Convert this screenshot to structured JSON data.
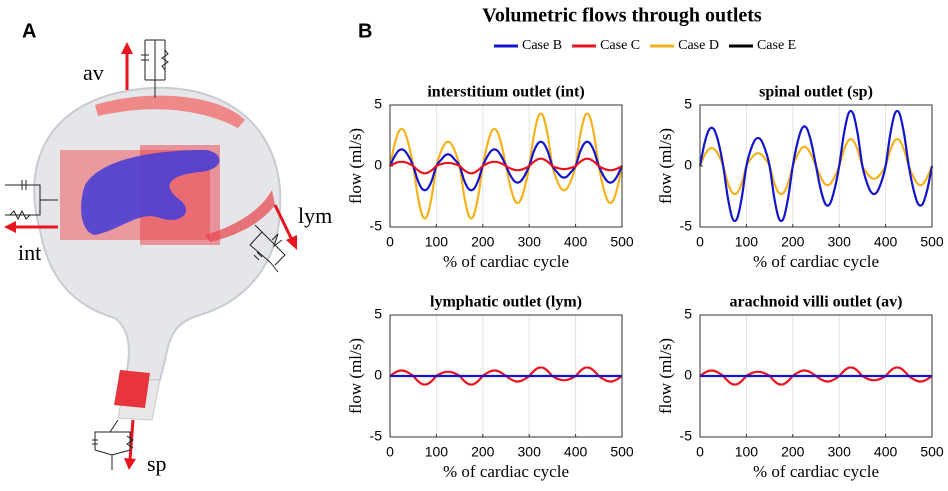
{
  "panel_a": {
    "label": "A",
    "outlets": [
      "av",
      "int",
      "lym",
      "sp"
    ]
  },
  "panel_b": {
    "label": "B",
    "title": "Volumetric flows through outlets",
    "legend": [
      {
        "name": "Case B",
        "color": "#1414cc"
      },
      {
        "name": "Case C",
        "color": "#e8141e"
      },
      {
        "name": "Case D",
        "color": "#f5b21b"
      },
      {
        "name": "Case E",
        "color": "#000000"
      }
    ]
  },
  "chart_data": [
    {
      "type": "line",
      "title": "interstitium outlet (int)",
      "xlabel": "% of cardiac cycle",
      "ylabel": "flow (ml/s)",
      "x": [
        0,
        10,
        20,
        30,
        40,
        50,
        60,
        70,
        80,
        90,
        100,
        110,
        120,
        130,
        140,
        150,
        160,
        170,
        180,
        190,
        200,
        210,
        220,
        230,
        240,
        250,
        260,
        270,
        280,
        290,
        300,
        310,
        320,
        330,
        340,
        350,
        360,
        370,
        380,
        390,
        400,
        410,
        420,
        430,
        440,
        450,
        460,
        470,
        480,
        490,
        500
      ],
      "xlim": [
        0,
        500
      ],
      "xticks": [
        0,
        100,
        200,
        300,
        400,
        500
      ],
      "ylim": [
        -5,
        5
      ],
      "yticks": [
        -5,
        0,
        5
      ],
      "grid": "x",
      "series": [
        {
          "name": "Case D",
          "color": "#f5b21b",
          "values": [
            0,
            1.8,
            2.9,
            2.9,
            1.8,
            0,
            -2.5,
            -4.1,
            -4.1,
            -2.5,
            0,
            1.2,
            1.9,
            1.9,
            1.2,
            0,
            -2.5,
            -4.1,
            -4.1,
            -2.5,
            0,
            1.8,
            2.9,
            2.9,
            1.8,
            0,
            -1.8,
            -2.9,
            -2.9,
            -1.8,
            0,
            2.5,
            4.1,
            4.1,
            2.5,
            0,
            -1.2,
            -1.9,
            -1.9,
            -1.2,
            0,
            2.5,
            4.1,
            4.1,
            2.5,
            0,
            -1.8,
            -2.9,
            -2.9,
            -1.8,
            0
          ]
        },
        {
          "name": "Case B",
          "color": "#1414cc",
          "values": [
            0,
            0.8,
            1.3,
            1.3,
            0.8,
            0,
            -1.2,
            -1.9,
            -1.9,
            -1.2,
            0,
            0.5,
            0.9,
            0.9,
            0.5,
            0,
            -1.2,
            -1.9,
            -1.9,
            -1.2,
            0,
            0.8,
            1.3,
            1.3,
            0.8,
            0,
            -0.8,
            -1.3,
            -1.3,
            -0.8,
            0,
            1.2,
            1.9,
            1.9,
            1.2,
            0,
            -0.5,
            -0.9,
            -0.9,
            -0.5,
            0,
            1.2,
            1.9,
            1.9,
            1.2,
            0,
            -0.8,
            -1.3,
            -1.3,
            -0.8,
            0
          ]
        },
        {
          "name": "Case C",
          "color": "#e8141e",
          "values": [
            0,
            0.21,
            0.33,
            0.33,
            0.21,
            0,
            -0.35,
            -0.57,
            -0.57,
            -0.35,
            0,
            0.15,
            0.24,
            0.24,
            0.15,
            0,
            -0.35,
            -0.57,
            -0.57,
            -0.35,
            0,
            0.21,
            0.33,
            0.33,
            0.21,
            0,
            -0.21,
            -0.33,
            -0.33,
            -0.21,
            0,
            0.35,
            0.57,
            0.57,
            0.35,
            0,
            -0.15,
            -0.24,
            -0.24,
            -0.15,
            0,
            0.35,
            0.57,
            0.57,
            0.35,
            0,
            -0.21,
            -0.33,
            -0.33,
            -0.21,
            0
          ]
        }
      ]
    },
    {
      "type": "line",
      "title": "spinal outlet (sp)",
      "xlabel": "% of cardiac cycle",
      "ylabel": "flow (ml/s)",
      "x": [
        0,
        10,
        20,
        30,
        40,
        50,
        60,
        70,
        80,
        90,
        100,
        110,
        120,
        130,
        140,
        150,
        160,
        170,
        180,
        190,
        200,
        210,
        220,
        230,
        240,
        250,
        260,
        270,
        280,
        290,
        300,
        310,
        320,
        330,
        340,
        350,
        360,
        370,
        380,
        390,
        400,
        410,
        420,
        430,
        440,
        450,
        460,
        470,
        480,
        490,
        500
      ],
      "xlim": [
        0,
        500
      ],
      "xticks": [
        0,
        100,
        200,
        300,
        400,
        500
      ],
      "ylim": [
        -5,
        5
      ],
      "yticks": [
        -5,
        0,
        5
      ],
      "grid": "x",
      "series": [
        {
          "name": "Case D",
          "color": "#f5b21b",
          "values": [
            0,
            0.9,
            1.4,
            1.4,
            0.9,
            0,
            -1.4,
            -2.2,
            -2.2,
            -1.4,
            0,
            0.6,
            1.0,
            1.0,
            0.6,
            0,
            -1.4,
            -2.2,
            -2.2,
            -1.4,
            0,
            0.9,
            1.5,
            1.5,
            0.9,
            0,
            -0.9,
            -1.5,
            -1.5,
            -0.9,
            0,
            1.3,
            2.1,
            2.1,
            1.3,
            0,
            -0.6,
            -1.0,
            -1.0,
            -0.6,
            0,
            1.3,
            2.1,
            2.1,
            1.3,
            0,
            -0.9,
            -1.5,
            -1.5,
            -0.9,
            0
          ]
        },
        {
          "name": "Case B",
          "color": "#1414cc",
          "values": [
            0,
            1.9,
            3.0,
            3.0,
            1.9,
            0,
            -2.6,
            -4.3,
            -4.3,
            -2.6,
            0,
            1.4,
            2.2,
            2.2,
            1.4,
            0,
            -2.6,
            -4.3,
            -4.3,
            -2.6,
            0,
            1.9,
            3.1,
            3.1,
            1.9,
            0,
            -1.9,
            -3.1,
            -3.1,
            -1.9,
            0,
            2.6,
            4.3,
            4.3,
            2.6,
            0,
            -1.4,
            -2.2,
            -2.2,
            -1.4,
            0,
            2.6,
            4.3,
            4.3,
            2.6,
            0,
            -1.9,
            -3.1,
            -3.1,
            -1.9,
            0
          ]
        }
      ]
    },
    {
      "type": "line",
      "title": "lymphatic outlet (lym)",
      "xlabel": "% of cardiac cycle",
      "ylabel": "flow (ml/s)",
      "x": [
        0,
        10,
        20,
        30,
        40,
        50,
        60,
        70,
        80,
        90,
        100,
        110,
        120,
        130,
        140,
        150,
        160,
        170,
        180,
        190,
        200,
        210,
        220,
        230,
        240,
        250,
        260,
        270,
        280,
        290,
        300,
        310,
        320,
        330,
        340,
        350,
        360,
        370,
        380,
        390,
        400,
        410,
        420,
        430,
        440,
        450,
        460,
        470,
        480,
        490,
        500
      ],
      "xlim": [
        0,
        500
      ],
      "xticks": [
        0,
        100,
        200,
        300,
        400,
        500
      ],
      "ylim": [
        -5,
        5
      ],
      "yticks": [
        -5,
        0,
        5
      ],
      "grid": "x",
      "series": [
        {
          "name": "Case C",
          "color": "#e8141e",
          "values": [
            0,
            0.26,
            0.43,
            0.43,
            0.26,
            0,
            -0.41,
            -0.67,
            -0.67,
            -0.41,
            0,
            0.21,
            0.33,
            0.33,
            0.21,
            0,
            -0.41,
            -0.67,
            -0.67,
            -0.41,
            0,
            0.26,
            0.43,
            0.43,
            0.26,
            0,
            -0.26,
            -0.43,
            -0.43,
            -0.26,
            0,
            0.41,
            0.67,
            0.67,
            0.41,
            0,
            -0.21,
            -0.33,
            -0.33,
            -0.21,
            0,
            0.41,
            0.67,
            0.67,
            0.41,
            0,
            -0.26,
            -0.43,
            -0.43,
            -0.26,
            0
          ]
        },
        {
          "name": "Case B",
          "color": "#1414cc",
          "values": [
            0,
            0,
            0,
            0,
            0,
            0,
            0,
            0,
            0,
            0,
            0,
            0,
            0,
            0,
            0,
            0,
            0,
            0,
            0,
            0,
            0,
            0,
            0,
            0,
            0,
            0,
            0,
            0,
            0,
            0,
            0,
            0,
            0,
            0,
            0,
            0,
            0,
            0,
            0,
            0,
            0,
            0,
            0,
            0,
            0,
            0,
            0,
            0,
            0,
            0,
            0
          ]
        }
      ]
    },
    {
      "type": "line",
      "title": "arachnoid villi outlet (av)",
      "xlabel": "% of cardiac cycle",
      "ylabel": "flow (ml/s)",
      "x": [
        0,
        10,
        20,
        30,
        40,
        50,
        60,
        70,
        80,
        90,
        100,
        110,
        120,
        130,
        140,
        150,
        160,
        170,
        180,
        190,
        200,
        210,
        220,
        230,
        240,
        250,
        260,
        270,
        280,
        290,
        300,
        310,
        320,
        330,
        340,
        350,
        360,
        370,
        380,
        390,
        400,
        410,
        420,
        430,
        440,
        450,
        460,
        470,
        480,
        490,
        500
      ],
      "xlim": [
        0,
        500
      ],
      "xticks": [
        0,
        100,
        200,
        300,
        400,
        500
      ],
      "ylim": [
        -5,
        5
      ],
      "yticks": [
        -5,
        0,
        5
      ],
      "grid": "x",
      "series": [
        {
          "name": "Case C",
          "color": "#e8141e",
          "values": [
            0,
            0.26,
            0.43,
            0.43,
            0.26,
            0,
            -0.41,
            -0.67,
            -0.67,
            -0.41,
            0,
            0.21,
            0.33,
            0.33,
            0.21,
            0,
            -0.41,
            -0.67,
            -0.67,
            -0.41,
            0,
            0.26,
            0.43,
            0.43,
            0.26,
            0,
            -0.26,
            -0.43,
            -0.43,
            -0.26,
            0,
            0.41,
            0.67,
            0.67,
            0.41,
            0,
            -0.21,
            -0.33,
            -0.33,
            -0.21,
            0,
            0.41,
            0.67,
            0.67,
            0.41,
            0,
            -0.26,
            -0.43,
            -0.43,
            -0.26,
            0
          ]
        },
        {
          "name": "Case B",
          "color": "#1414cc",
          "values": [
            0,
            0,
            0,
            0,
            0,
            0,
            0,
            0,
            0,
            0,
            0,
            0,
            0,
            0,
            0,
            0,
            0,
            0,
            0,
            0,
            0,
            0,
            0,
            0,
            0,
            0,
            0,
            0,
            0,
            0,
            0,
            0,
            0,
            0,
            0,
            0,
            0,
            0,
            0,
            0,
            0,
            0,
            0,
            0,
            0,
            0,
            0,
            0,
            0,
            0,
            0
          ]
        }
      ]
    }
  ]
}
